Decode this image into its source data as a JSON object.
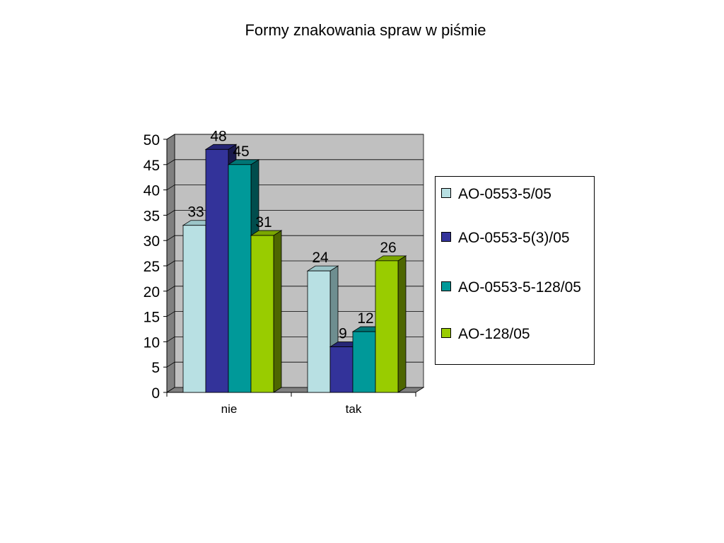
{
  "colors": {
    "wall": "#c0c0c0",
    "floor": "#808080",
    "gridline": "#000000",
    "series": [
      "#b8e0e3",
      "#33339a",
      "#009999",
      "#99cc00"
    ],
    "series_top": [
      "#9bc5c8",
      "#262675",
      "#007676",
      "#7aa600"
    ],
    "series_side": [
      "#6e8e90",
      "#1a1a4d",
      "#004d4d",
      "#4d6600"
    ]
  },
  "chart_data": {
    "type": "bar",
    "title": "Formy znakowania spraw w piśmie",
    "xlabel": "",
    "ylabel": "",
    "categories": [
      "nie",
      "tak"
    ],
    "series": [
      {
        "name": "AO-0553-5/05",
        "values": [
          33,
          24
        ]
      },
      {
        "name": "AO-0553-5(3)/05",
        "values": [
          48,
          9
        ]
      },
      {
        "name": "AO-0553-5-128/05",
        "values": [
          45,
          12
        ]
      },
      {
        "name": "AO-128/05",
        "values": [
          31,
          26
        ]
      }
    ],
    "ylim": [
      0,
      50
    ],
    "yticks": [
      0,
      5,
      10,
      15,
      20,
      25,
      30,
      35,
      40,
      45,
      50
    ],
    "grid": true,
    "legend": "right",
    "style": "3d"
  }
}
